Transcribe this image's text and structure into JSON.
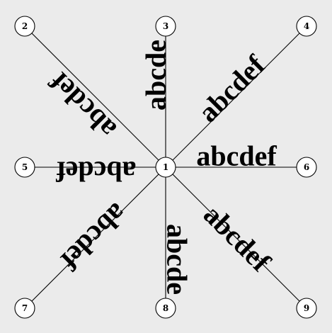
{
  "colors": {
    "background": "#ebebeb",
    "node_fill": "#ffffff",
    "stroke": "#000000",
    "text": "#000000"
  },
  "graph": {
    "center": "1",
    "nodes": [
      {
        "id": "1",
        "label": "1"
      },
      {
        "id": "2",
        "label": "2"
      },
      {
        "id": "3",
        "label": "3"
      },
      {
        "id": "4",
        "label": "4"
      },
      {
        "id": "5",
        "label": "5"
      },
      {
        "id": "6",
        "label": "6"
      },
      {
        "id": "7",
        "label": "7"
      },
      {
        "id": "8",
        "label": "8"
      },
      {
        "id": "9",
        "label": "9"
      }
    ],
    "edges": [
      {
        "id": "1-2",
        "source": "1",
        "target": "2",
        "label": "abcdef"
      },
      {
        "id": "1-3",
        "source": "1",
        "target": "3",
        "label": "abcde"
      },
      {
        "id": "1-4",
        "source": "1",
        "target": "4",
        "label": "abcdef"
      },
      {
        "id": "1-5",
        "source": "1",
        "target": "5",
        "label": "abcdef"
      },
      {
        "id": "1-6",
        "source": "1",
        "target": "6",
        "label": "abcdef"
      },
      {
        "id": "1-7",
        "source": "1",
        "target": "7",
        "label": "abcdef"
      },
      {
        "id": "1-8",
        "source": "1",
        "target": "8",
        "label": "abcde"
      },
      {
        "id": "1-9",
        "source": "1",
        "target": "9",
        "label": "abcdef"
      }
    ]
  }
}
